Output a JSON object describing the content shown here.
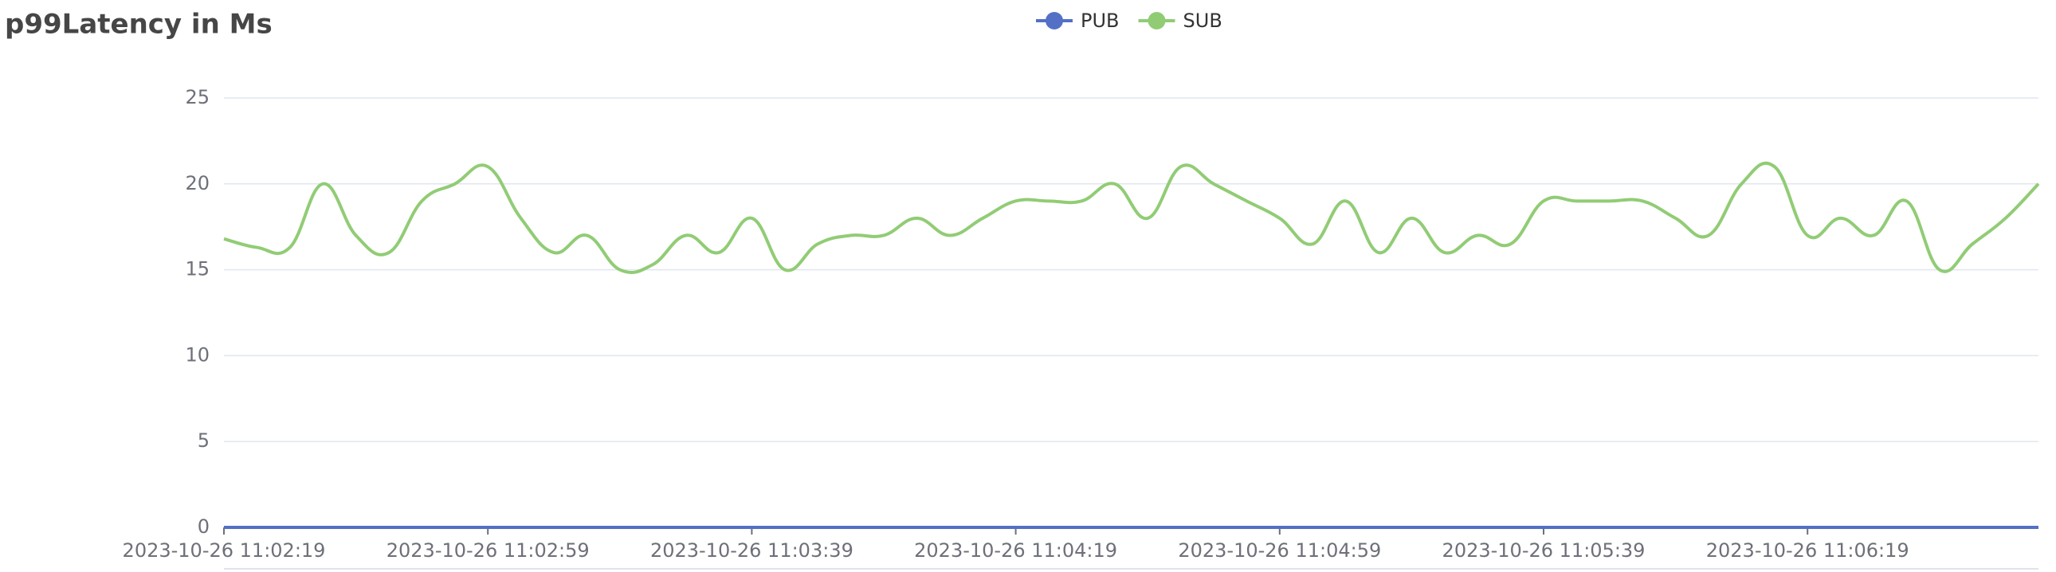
{
  "chart_data": {
    "type": "line",
    "title": "p99Latency in Ms",
    "categories": [
      "2023-10-26 11:02:19",
      null,
      null,
      null,
      null,
      null,
      null,
      null,
      "2023-10-26 11:02:59",
      null,
      null,
      null,
      null,
      null,
      null,
      null,
      "2023-10-26 11:03:39",
      null,
      null,
      null,
      null,
      null,
      null,
      null,
      "2023-10-26 11:04:19",
      null,
      null,
      null,
      null,
      null,
      null,
      null,
      "2023-10-26 11:04:59",
      null,
      null,
      null,
      null,
      null,
      null,
      null,
      "2023-10-26 11:05:39",
      null,
      null,
      null,
      null,
      null,
      null,
      null,
      "2023-10-26 11:06:19",
      null,
      null,
      null,
      null,
      null,
      null,
      null
    ],
    "series": [
      {
        "name": "PUB",
        "color": "#5470c6",
        "values": [
          0,
          0,
          0,
          0,
          0,
          0,
          0,
          0,
          0,
          0,
          0,
          0,
          0,
          0,
          0,
          0,
          0,
          0,
          0,
          0,
          0,
          0,
          0,
          0,
          0,
          0,
          0,
          0,
          0,
          0,
          0,
          0,
          0,
          0,
          0,
          0,
          0,
          0,
          0,
          0,
          0,
          0,
          0,
          0,
          0,
          0,
          0,
          0,
          0,
          0,
          0,
          0,
          0,
          0,
          0,
          0
        ]
      },
      {
        "name": "SUB",
        "color": "#91cc75",
        "values": [
          16.8,
          16.3,
          16.3,
          20,
          17,
          16,
          19,
          20,
          21,
          18,
          16,
          17,
          15,
          15.3,
          17,
          16,
          18,
          15,
          16.5,
          17,
          17,
          18,
          17,
          18,
          19,
          19,
          19,
          20,
          18,
          21,
          20,
          19,
          18,
          16.5,
          19,
          16,
          18,
          16,
          17,
          16.5,
          19,
          19,
          19,
          19,
          18,
          17,
          20,
          21,
          17,
          18,
          17,
          19,
          15,
          16.5,
          18,
          20
        ]
      }
    ],
    "ylim": [
      0,
      25
    ],
    "yticks": [
      0,
      5,
      10,
      15,
      20,
      25
    ],
    "grid": true
  }
}
